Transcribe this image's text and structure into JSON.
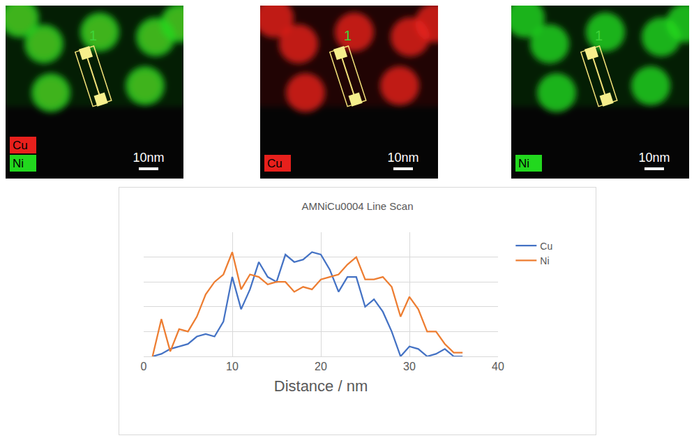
{
  "images": [
    {
      "channels": [
        {
          "name": "Cu",
          "color": "#e8201c"
        },
        {
          "name": "Ni",
          "color": "#22d81e"
        }
      ],
      "scale_bar": "10nm",
      "line_label": "1"
    },
    {
      "channels": [
        {
          "name": "Cu",
          "color": "#e8201c"
        }
      ],
      "scale_bar": "10nm",
      "line_label": "1"
    },
    {
      "channels": [
        {
          "name": "Ni",
          "color": "#22d81e"
        }
      ],
      "scale_bar": "10nm",
      "line_label": "1"
    }
  ],
  "chart_data": {
    "type": "line",
    "title": "AMNiCu0004 Line Scan",
    "x_label": "Distance / nm",
    "x": [
      1,
      2,
      3,
      4,
      5,
      6,
      7,
      8,
      9,
      10,
      11,
      12,
      13,
      14,
      15,
      16,
      17,
      18,
      19,
      20,
      21,
      22,
      23,
      24,
      25,
      26,
      27,
      28,
      29,
      30,
      31,
      32,
      33,
      34,
      35,
      36
    ],
    "series": [
      {
        "name": "Cu",
        "color": "#4472c4",
        "values": [
          0,
          0.1,
          0.3,
          0.4,
          0.5,
          0.8,
          0.9,
          0.8,
          1.4,
          3.2,
          1.9,
          2.7,
          3.8,
          3.2,
          3.0,
          4.1,
          3.8,
          3.9,
          4.2,
          4.1,
          3.5,
          2.6,
          3.2,
          3.2,
          2.0,
          2.3,
          1.8,
          1.0,
          0,
          0.4,
          0.3,
          0,
          0.1,
          0.3,
          0,
          0
        ]
      },
      {
        "name": "Ni",
        "color": "#ed7d31",
        "values": [
          0,
          1.5,
          0.2,
          1.1,
          1.0,
          1.6,
          2.5,
          3.0,
          3.3,
          4.2,
          2.7,
          3.3,
          3.2,
          2.9,
          3.0,
          3.0,
          2.6,
          2.8,
          2.7,
          3.1,
          3.2,
          3.3,
          3.7,
          4.0,
          3.1,
          3.1,
          3.2,
          2.8,
          1.6,
          2.4,
          1.9,
          1.0,
          1.0,
          0.5,
          0.15,
          0.15
        ]
      }
    ],
    "xlim": [
      0,
      40
    ],
    "xticks": [
      0,
      10,
      20,
      30,
      40
    ],
    "ylim": [
      0,
      5
    ],
    "yticks": [
      0,
      1,
      2,
      3,
      4,
      5
    ],
    "grid": true,
    "legend": "upper right",
    "tick_labels": "x"
  }
}
